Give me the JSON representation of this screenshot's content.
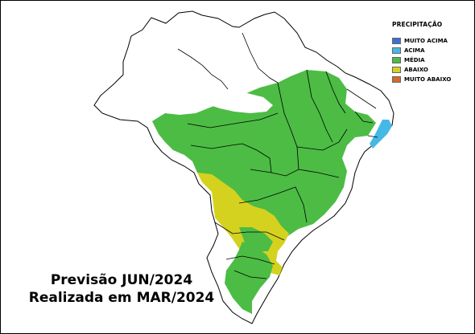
{
  "legend": {
    "title": "PRECIPITAÇÃO",
    "items": [
      {
        "label": "MUITO ACIMA",
        "color": "#3b6fd4"
      },
      {
        "label": "ACIMA",
        "color": "#46b8e6"
      },
      {
        "label": "MÉDIA",
        "color": "#4cbc45"
      },
      {
        "label": "ABAIXO",
        "color": "#d5d21f"
      },
      {
        "label": "MUITO ABAIXO",
        "color": "#d8682c"
      }
    ]
  },
  "caption": {
    "line1": "Previsão JUN/2024",
    "line2": "Realizada em MAR/2024"
  },
  "map": {
    "region": "Brazil",
    "colors": {
      "land": "#ffffff",
      "border": "#000000",
      "media": "#4cbc45",
      "abaixo": "#d5d21f",
      "acima": "#46b8e6"
    }
  }
}
